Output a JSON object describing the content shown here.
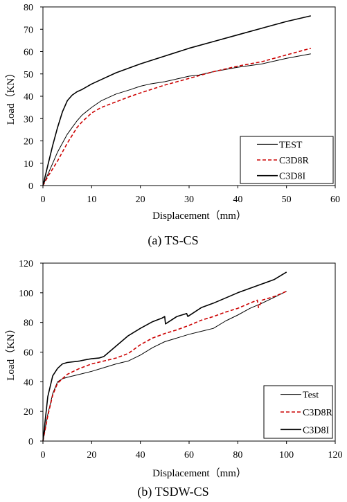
{
  "chart_data": [
    {
      "type": "line",
      "caption": "(a) TS-CS",
      "xlabel": "Displacement（mm）",
      "ylabel": "Load（KN）",
      "xlim": [
        0,
        60
      ],
      "ylim": [
        0,
        80
      ],
      "xticks": [
        "0",
        "10",
        "20",
        "30",
        "40",
        "50",
        "60"
      ],
      "yticks": [
        "0",
        "10",
        "20",
        "30",
        "40",
        "50",
        "60",
        "70",
        "80"
      ],
      "grid": false,
      "legend_position": "bottom-right",
      "series": [
        {
          "name": "TEST",
          "color": "#000000",
          "dash": "solid",
          "width": 1,
          "x": [
            0,
            1,
            2,
            3,
            4,
            5,
            6,
            7,
            8,
            10,
            12,
            15,
            18,
            20,
            22,
            25,
            28,
            30,
            32,
            35,
            40,
            45,
            50,
            55
          ],
          "y": [
            0,
            5,
            10,
            15,
            19,
            23,
            26,
            29,
            31.5,
            35,
            38,
            41,
            43,
            44.5,
            45.5,
            46.5,
            48,
            49,
            49.5,
            51,
            53,
            54.5,
            57,
            59
          ]
        },
        {
          "name": "C3D8R",
          "color": "#cc0000",
          "dash": "dashed",
          "width": 1.6,
          "x": [
            0,
            1,
            2,
            3,
            4,
            5,
            6,
            7,
            8,
            10,
            12,
            15,
            18,
            20,
            25,
            30,
            35,
            40,
            45,
            50,
            55
          ],
          "y": [
            0,
            4,
            7.5,
            11,
            15,
            19,
            22.5,
            26,
            28.5,
            32.5,
            35,
            37.5,
            40,
            41.5,
            45,
            48,
            51,
            53.5,
            55.5,
            58.5,
            61.5
          ]
        },
        {
          "name": "C3D8I",
          "color": "#000000",
          "dash": "solid",
          "width": 1.6,
          "x": [
            0,
            1,
            2,
            3,
            4,
            5,
            6,
            7,
            8,
            10,
            12,
            15,
            20,
            25,
            30,
            35,
            40,
            45,
            50,
            55
          ],
          "y": [
            0,
            9,
            18,
            26,
            33,
            38,
            40.5,
            42,
            43,
            45.5,
            47.5,
            50.5,
            54.5,
            58,
            61.5,
            64.5,
            67.5,
            70.5,
            73.5,
            76
          ]
        }
      ]
    },
    {
      "type": "line",
      "caption": "(b) TSDW-CS",
      "xlabel": "Displacement（mm）",
      "ylabel": "Load（KN）",
      "xlim": [
        0,
        120
      ],
      "ylim": [
        0,
        120
      ],
      "xticks": [
        "0",
        "20",
        "40",
        "60",
        "80",
        "100",
        "120"
      ],
      "yticks": [
        "0",
        "20",
        "40",
        "60",
        "80",
        "100",
        "120"
      ],
      "grid": false,
      "legend_position": "bottom-right",
      "series": [
        {
          "name": "Test",
          "color": "#000000",
          "dash": "solid",
          "width": 1,
          "x": [
            0,
            2,
            4,
            6,
            8,
            10,
            15,
            20,
            25,
            30,
            35,
            40,
            45,
            50,
            55,
            60,
            65,
            70,
            75,
            80,
            85,
            90,
            95,
            100
          ],
          "y": [
            0,
            18,
            32,
            40,
            42,
            43,
            45,
            47,
            49.5,
            52,
            54,
            58,
            63,
            67,
            69.5,
            72,
            74,
            76,
            81,
            85,
            89.5,
            93,
            97,
            101
          ]
        },
        {
          "name": "C3D8R",
          "color": "#cc0000",
          "dash": "dashed",
          "width": 1.6,
          "x": [
            0,
            2,
            4,
            6,
            8,
            10,
            15,
            20,
            25,
            30,
            35,
            40,
            45,
            50,
            55,
            60,
            65,
            70,
            75,
            80,
            85,
            88,
            88.5,
            90,
            95,
            100
          ],
          "y": [
            0,
            17,
            31,
            39,
            42,
            45,
            49,
            52,
            54,
            56,
            59,
            65,
            69.5,
            72.5,
            75,
            78,
            81.5,
            84,
            87,
            89.5,
            93,
            95,
            90,
            95,
            97.5,
            101
          ]
        },
        {
          "name": "C3D8I",
          "color": "#000000",
          "dash": "solid",
          "width": 1.6,
          "x": [
            0,
            2,
            4,
            6,
            8,
            10,
            15,
            18,
            20,
            23,
            25,
            30,
            35,
            40,
            45,
            49,
            50,
            50.3,
            55,
            58,
            59,
            59.5,
            65,
            70,
            75,
            80,
            85,
            90,
            95,
            100
          ],
          "y": [
            0,
            30,
            44,
            49,
            52,
            53,
            54,
            55,
            55.5,
            56,
            57,
            64,
            71,
            76,
            80.5,
            83,
            84,
            79,
            84,
            85.5,
            86,
            84,
            90,
            93,
            96.5,
            100,
            103,
            106,
            109,
            114
          ]
        }
      ]
    }
  ]
}
